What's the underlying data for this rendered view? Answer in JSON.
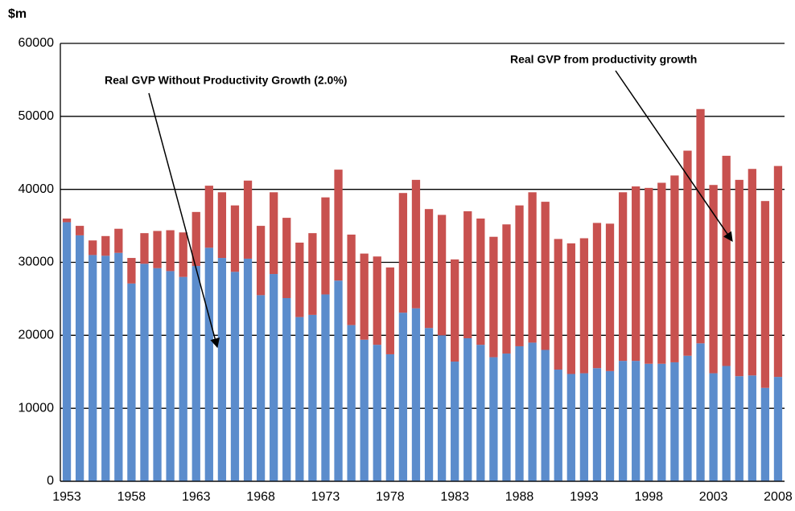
{
  "chart_data": {
    "type": "stacked_bar",
    "y_label": "$m",
    "annotations": [
      "Real GVP Without Productivity Growth (2.0%)",
      "Real GVP from productivity growth"
    ],
    "categories": [
      "1953",
      null,
      null,
      null,
      null,
      "1958",
      null,
      null,
      null,
      null,
      "1963",
      null,
      null,
      null,
      null,
      "1968",
      null,
      null,
      null,
      null,
      "1973",
      null,
      null,
      null,
      null,
      "1978",
      null,
      null,
      null,
      null,
      "1983",
      null,
      null,
      null,
      null,
      "1988",
      null,
      null,
      null,
      null,
      "1993",
      null,
      null,
      null,
      null,
      "1998",
      null,
      null,
      null,
      null,
      "2003",
      null,
      null,
      null,
      null,
      "2008"
    ],
    "series": [
      {
        "color": "#5b8ccc",
        "values": [
          35500,
          33700,
          31000,
          30900,
          31300,
          27100,
          29800,
          29200,
          28800,
          28000,
          29500,
          32000,
          30600,
          28700,
          30500,
          25500,
          28400,
          25100,
          22500,
          22800,
          25600,
          27500,
          21400,
          19400,
          18700,
          17400,
          23100,
          23700,
          21000,
          20000,
          16400,
          19600,
          18700,
          17000,
          17500,
          18500,
          19000,
          18000,
          15300,
          14700,
          14800,
          15500,
          15100,
          16500,
          16500,
          16100,
          16100,
          16300,
          17200,
          18900,
          14800,
          15800,
          14400,
          14500,
          12800,
          14300
        ]
      },
      {
        "color": "#c8514f",
        "values": [
          500,
          1300,
          2000,
          2700,
          3300,
          3500,
          4200,
          5100,
          5600,
          6100,
          7400,
          8500,
          9000,
          9100,
          10700,
          9500,
          11200,
          11000,
          10200,
          11200,
          13300,
          15200,
          12400,
          11800,
          12100,
          11900,
          16400,
          17600,
          16300,
          16500,
          14000,
          17400,
          17300,
          16500,
          17700,
          19300,
          20600,
          20300,
          17900,
          17900,
          18500,
          19900,
          20200,
          23100,
          23900,
          24100,
          24800,
          25600,
          28100,
          32100,
          25800,
          28800,
          26900,
          28300,
          25600,
          28900
        ]
      }
    ],
    "ylim": [
      0,
      60000
    ],
    "yticks": [
      0,
      10000,
      20000,
      30000,
      40000,
      50000,
      60000
    ],
    "grid": true
  }
}
